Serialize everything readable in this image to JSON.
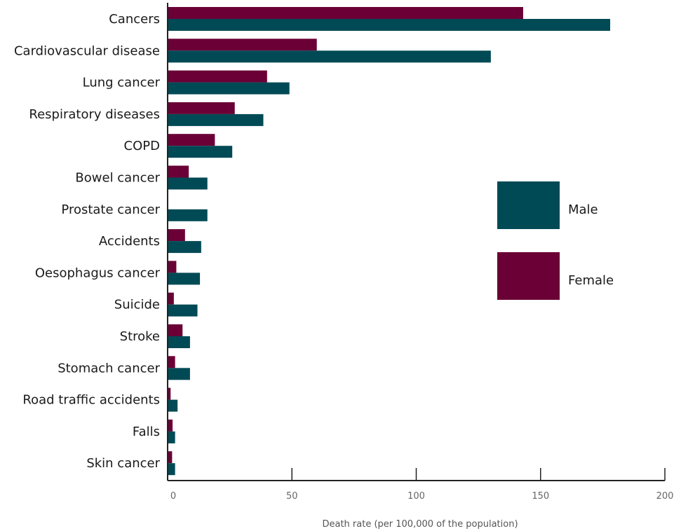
{
  "chart_data": {
    "type": "bar",
    "orientation": "horizontal",
    "title": "",
    "xlabel": "Death rate (per 100,000 of the population)",
    "ylabel": "",
    "xlim": [
      0,
      200
    ],
    "xticks": [
      0,
      50,
      100,
      150,
      200
    ],
    "categories": [
      "Cancers",
      "Cardiovascular disease",
      "Lung cancer",
      "Respiratory diseases",
      "COPD",
      "Bowel cancer",
      "Prostate cancer",
      "Accidents",
      "Oesophagus cancer",
      "Suicide",
      "Stroke",
      "Stomach cancer",
      "Road traffic accidents",
      "Falls",
      "Skin cancer"
    ],
    "series": [
      {
        "name": "Female",
        "color": "#6a0035",
        "values": [
          143,
          60,
          40,
          27,
          19,
          8.5,
          0,
          7,
          3.5,
          2.5,
          6,
          3,
          1.2,
          2,
          1.8
        ]
      },
      {
        "name": "Male",
        "color": "#004a55",
        "values": [
          178,
          130,
          49,
          38.5,
          26,
          16,
          16,
          13.5,
          13,
          12,
          9,
          9,
          4,
          3,
          3
        ]
      }
    ],
    "legend": [
      {
        "name": "Male",
        "color": "#004a55"
      },
      {
        "name": "Female",
        "color": "#6a0035"
      }
    ],
    "legend_position": "right",
    "grid": false
  }
}
